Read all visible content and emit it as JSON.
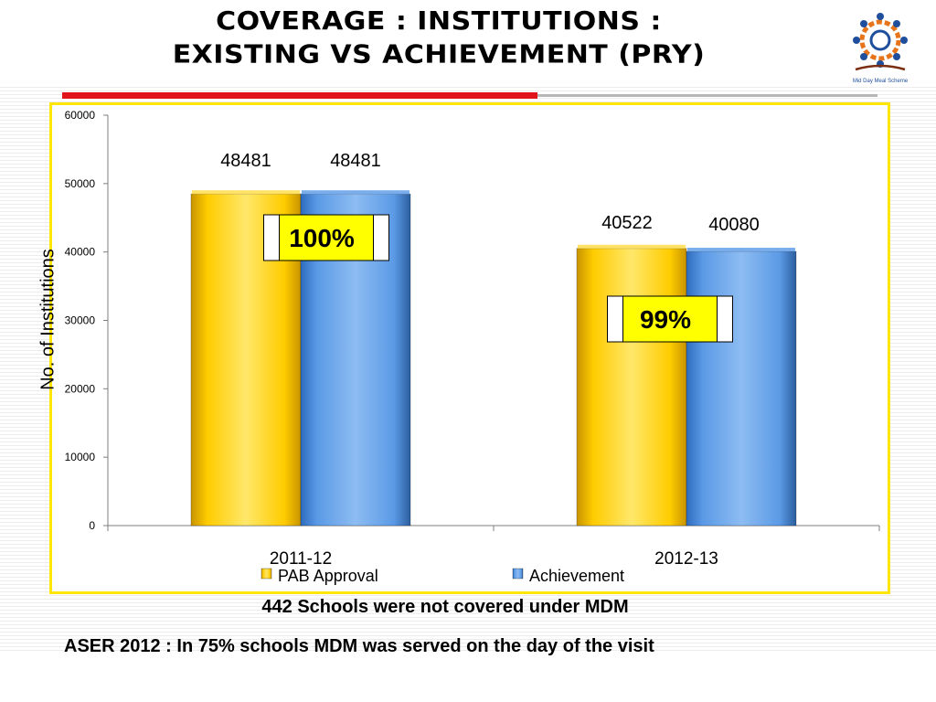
{
  "slide": {
    "title_line1": "Coverage : Institutions :",
    "title_line2": "Existing  Vs Achievement (PRY)",
    "note_schools": "442 Schools were not covered under MDM",
    "note_aser": "ASER 2012 :  In 75% schools MDM was served on the day of the visit",
    "logo_caption": "Mid Day Meal Scheme"
  },
  "colors": {
    "accent_red": "#e1141b",
    "frame_yellow": "#ffe600",
    "pab_series": "#ffc000",
    "achievement_series": "#4f8fdc",
    "badge_fill": "#ffff00"
  },
  "chart_data": {
    "type": "bar",
    "categories": [
      "2011-12",
      "2012-13"
    ],
    "series": [
      {
        "name": "PAB Approval",
        "values": [
          48481,
          40522
        ]
      },
      {
        "name": "Achievement",
        "values": [
          48481,
          40080
        ]
      }
    ],
    "data_labels": [
      [
        "48481",
        "40522"
      ],
      [
        "48481",
        "40080"
      ]
    ],
    "percent_badges": [
      "100%",
      "99%"
    ],
    "ylabel": "No. of Institutions",
    "xlabel": "",
    "ylim": [
      0,
      60000
    ],
    "yticks": [
      "0",
      "10000",
      "20000",
      "30000",
      "40000",
      "50000",
      "60000"
    ],
    "legend_position": "bottom",
    "grid": false
  }
}
